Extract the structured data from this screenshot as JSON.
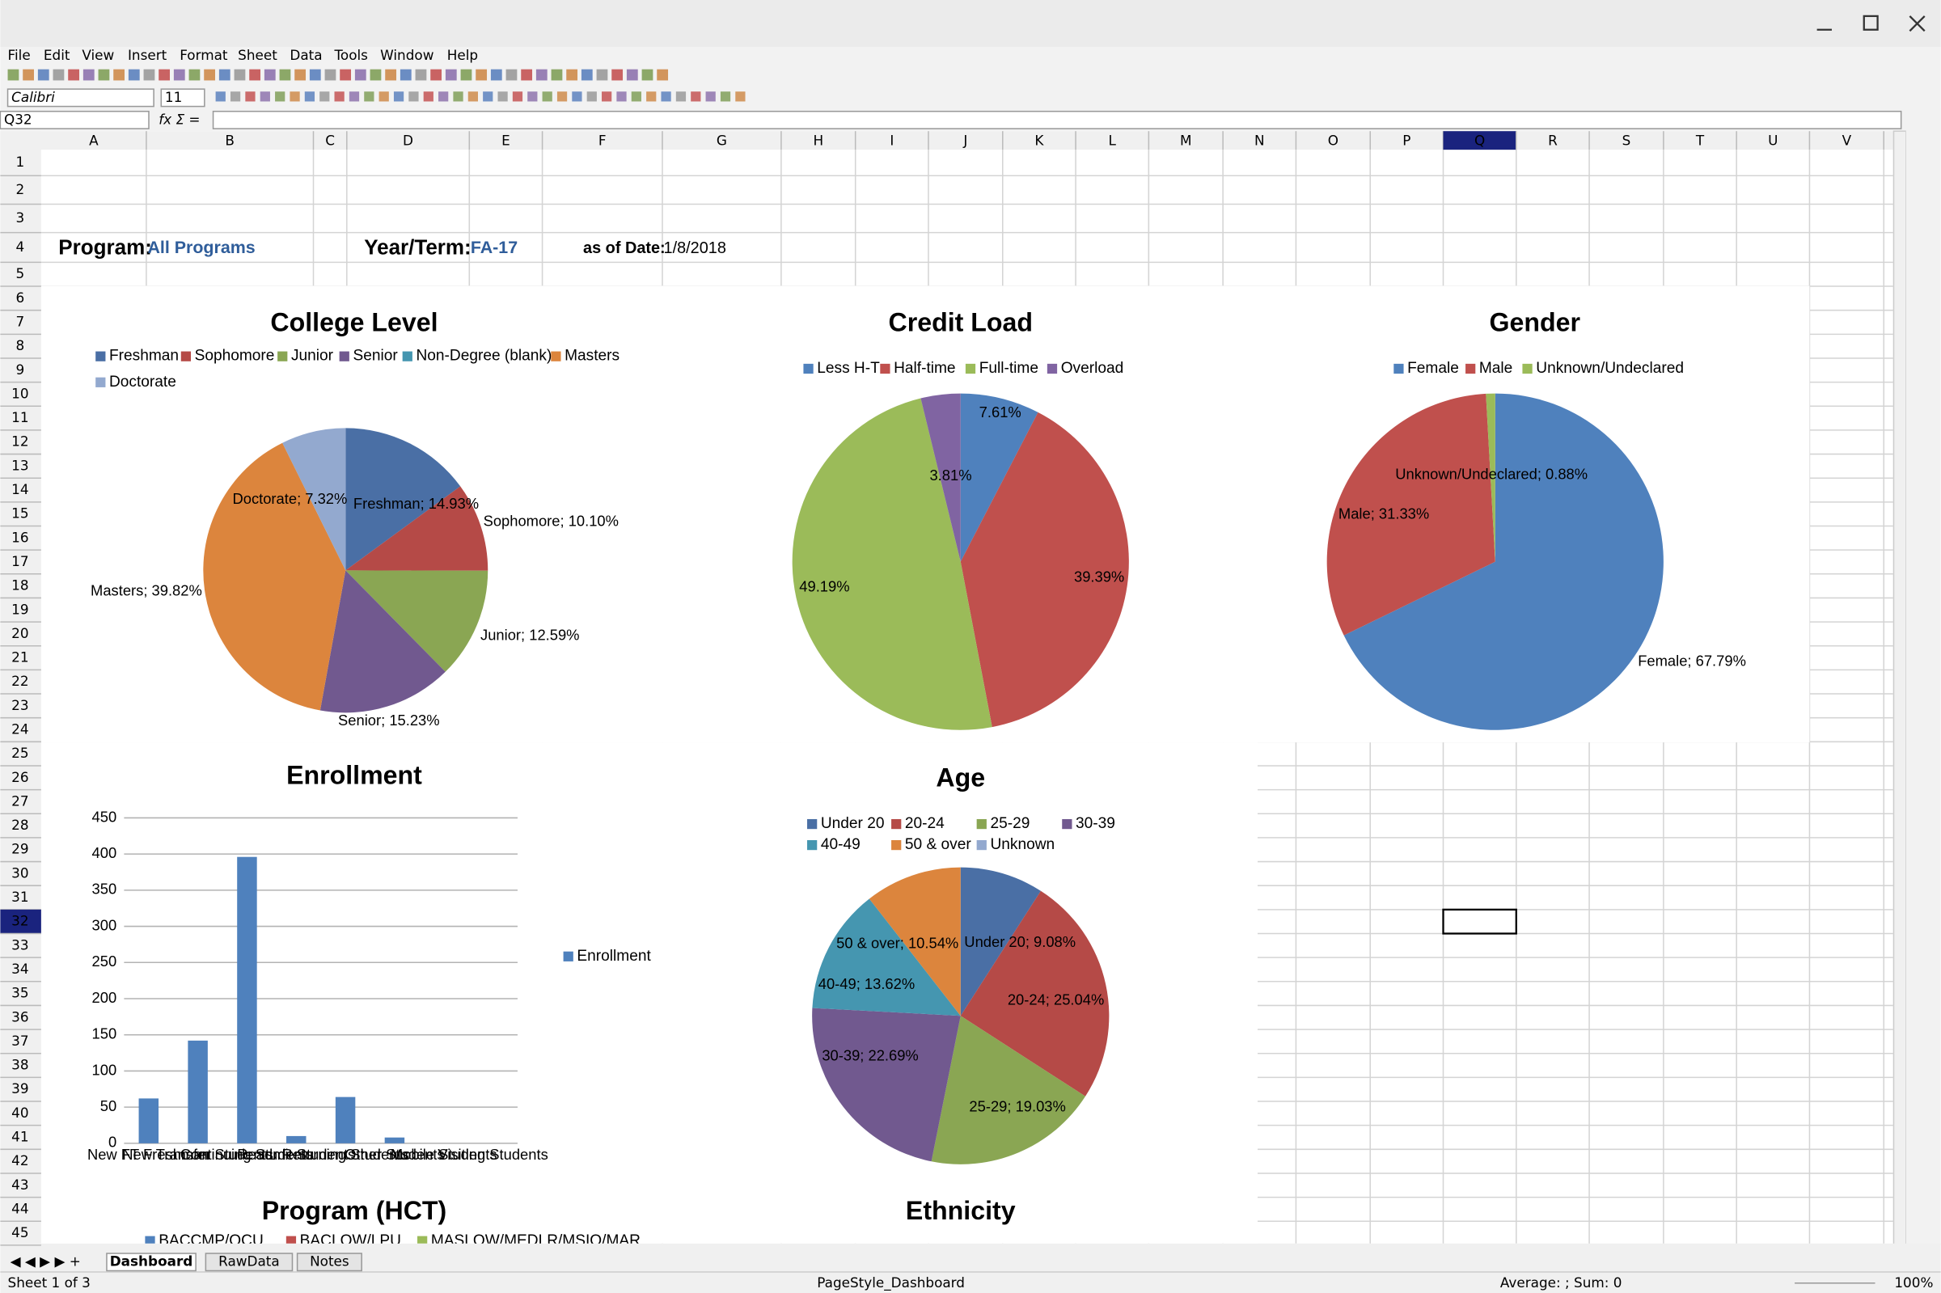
{
  "window": {
    "menu": [
      "File",
      "Edit",
      "View",
      "Insert",
      "Format",
      "Sheet",
      "Data",
      "Tools",
      "Window",
      "Help"
    ],
    "font_name": "Calibri",
    "font_size": "11",
    "name_box": "Q32",
    "columns": [
      "A",
      "B",
      "C",
      "D",
      "E",
      "F",
      "G",
      "H",
      "I",
      "J",
      "K",
      "L",
      "M",
      "N",
      "O",
      "P",
      "Q",
      "R",
      "S",
      "T",
      "U",
      "V"
    ],
    "rows": [
      1,
      2,
      3,
      4,
      5,
      6,
      7,
      8,
      9,
      10,
      11,
      12,
      13,
      14,
      15,
      16,
      17,
      18,
      19,
      20,
      21,
      22,
      23,
      24,
      25,
      26,
      27,
      28,
      29,
      30,
      31,
      32,
      33,
      34,
      35,
      36,
      37,
      38,
      39,
      40,
      41,
      42,
      43,
      44,
      45
    ]
  },
  "cells": {
    "program_label": "Program:",
    "program": "All Programs",
    "term_label": "Year/Term:",
    "term": "FA-17",
    "date_label": "as of Date:",
    "date": "1/8/2018"
  },
  "chart_data": [
    {
      "type": "pie",
      "title": "College Level",
      "categories": [
        "Freshman",
        "Sophomore",
        "Junior",
        "Senior",
        "Non-Degree (blank)",
        "Masters",
        "Doctorate"
      ],
      "values": [
        14.93,
        10.1,
        12.59,
        15.23,
        0,
        39.82,
        7.32
      ],
      "value_labels": [
        "Freshman; 14.93%",
        "Sophomore; 10.10%",
        "Junior; 12.59%",
        "Senior; 15.23%",
        null,
        "Masters; 39.82%",
        "Doctorate; 7.32%"
      ],
      "colors": [
        "#4a6fa5",
        "#b54a47",
        "#8aa653",
        "#71598f",
        "#4596b0",
        "#dc853d",
        "#93a9cf"
      ]
    },
    {
      "type": "pie",
      "title": "Credit Load",
      "categories": [
        "Less H-T",
        "Half-time",
        "Full-time",
        "Overload"
      ],
      "values": [
        7.61,
        39.39,
        49.19,
        3.81
      ],
      "value_labels": [
        "7.61%",
        "39.39%",
        "49.19%",
        "3.81%"
      ],
      "colors": [
        "#4f81bd",
        "#c0504d",
        "#9bbb59",
        "#8064a2"
      ]
    },
    {
      "type": "pie",
      "title": "Gender",
      "categories": [
        "Female",
        "Male",
        "Unknown/Undeclared"
      ],
      "values": [
        67.79,
        31.33,
        0.88
      ],
      "value_labels": [
        "Female; 67.79%",
        "Male; 31.33%",
        "Unknown/Undeclared; 0.88%"
      ],
      "colors": [
        "#4f81bd",
        "#c0504d",
        "#9bbb59"
      ]
    },
    {
      "type": "bar",
      "title": "Enrollment",
      "categories": [
        "New FT Freshman",
        "New Transfer Students",
        "Continuing Students",
        "Readmit Students",
        "Returning Students",
        "Other Students",
        "Mobile Students",
        "Visiting Students"
      ],
      "series": [
        {
          "name": "Enrollment",
          "color": "#4f81bd",
          "values": [
            62,
            142,
            396,
            10,
            64,
            8,
            0,
            0
          ]
        }
      ],
      "ylim": [
        0,
        450
      ],
      "yticks": [
        0,
        50,
        100,
        150,
        200,
        250,
        300,
        350,
        400,
        450
      ],
      "grid": true
    },
    {
      "type": "pie",
      "title": "Age",
      "categories": [
        "Under 20",
        "20-24",
        "25-29",
        "30-39",
        "40-49",
        "50 & over",
        "Unknown"
      ],
      "values": [
        9.08,
        25.04,
        19.03,
        22.69,
        13.62,
        10.54,
        0
      ],
      "value_labels": [
        "Under 20; 9.08%",
        "20-24; 25.04%",
        "25-29; 19.03%",
        "30-39; 22.69%",
        "40-49; 13.62%",
        "50 & over; 10.54%",
        null
      ],
      "colors": [
        "#4a6fa5",
        "#b54a47",
        "#8aa653",
        "#71598f",
        "#4596b0",
        "#dc853d",
        "#93a9cf"
      ]
    },
    {
      "type": "pie",
      "title": "Program (HCT)",
      "categories": [
        "BACCMP/OCU",
        "BACLOW/LPU",
        "MASLOW/MEDLR/MSIO/MAR"
      ],
      "colors": [
        "#4f81bd",
        "#c0504d",
        "#9bbb59"
      ]
    },
    {
      "type": "pie",
      "title": "Ethnicity"
    }
  ],
  "sheet_tabs": [
    "Dashboard",
    "RawData",
    "Notes"
  ],
  "status": {
    "sheet": "Sheet 1 of 3",
    "page_style": "PageStyle_Dashboard",
    "summary": "Average: ; Sum: 0",
    "zoom": "100%"
  }
}
